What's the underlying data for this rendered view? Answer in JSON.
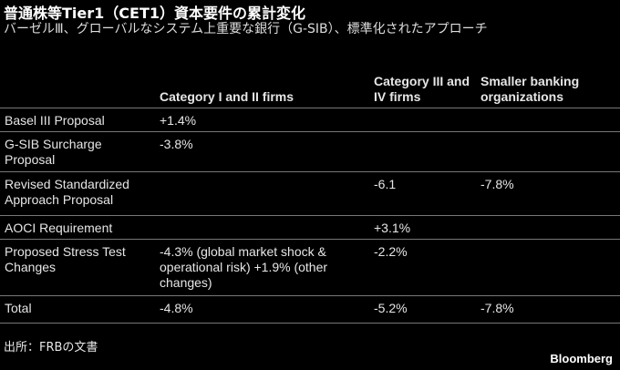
{
  "header": {
    "title": "普通株等Tier1（CET1）資本要件の累計変化",
    "subtitle": "バーゼルⅢ、グローバルなシステム上重要な銀行（G-SIB）、標準化されたアプローチ"
  },
  "table": {
    "columns": [
      null,
      "Category I and II firms",
      "Category III and IV firms",
      "Smaller banking organizations"
    ],
    "rows": [
      [
        "Basel III Proposal",
        "+1.4%",
        null,
        null
      ],
      [
        "G-SIB Surcharge Proposal",
        "-3.8%",
        null,
        null
      ],
      [
        "Revised Standardized Approach Proposal",
        null,
        "-6.1",
        "-7.8%"
      ],
      [
        "AOCI Requirement",
        null,
        "+3.1%",
        null
      ],
      [
        "Proposed Stress Test Changes",
        "-4.3% (global market shock & operational risk) +1.9% (other changes)",
        "-2.2%",
        null
      ],
      [
        "Total",
        "-4.8%",
        "-5.2%",
        "-7.8%"
      ]
    ]
  },
  "footer": {
    "source": "出所：FRBの文書",
    "brand": "Bloomberg"
  }
}
